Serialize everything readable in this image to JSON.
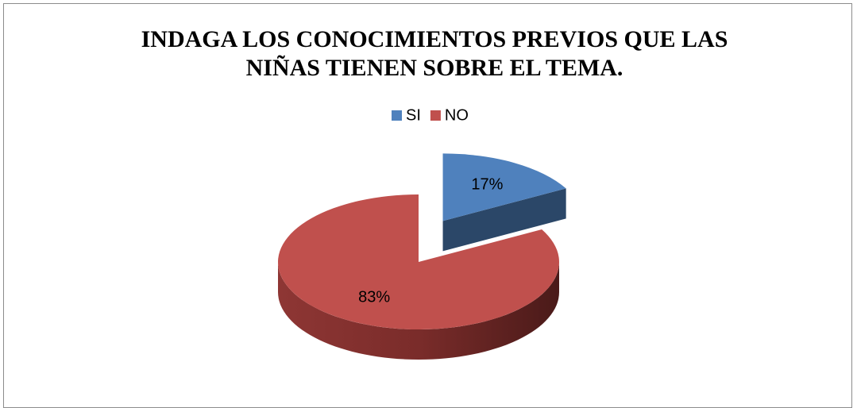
{
  "chart_data": {
    "type": "pie",
    "title": "INDAGA LOS CONOCIMIENTOS PREVIOS QUE LAS NIÑAS TIENEN SOBRE EL TEMA.",
    "categories": [
      "SI",
      "NO"
    ],
    "values": [
      17,
      83
    ],
    "value_labels": [
      "17%",
      "83%"
    ],
    "colors": [
      "#4f81bd",
      "#c0504d"
    ],
    "legend": "top"
  }
}
